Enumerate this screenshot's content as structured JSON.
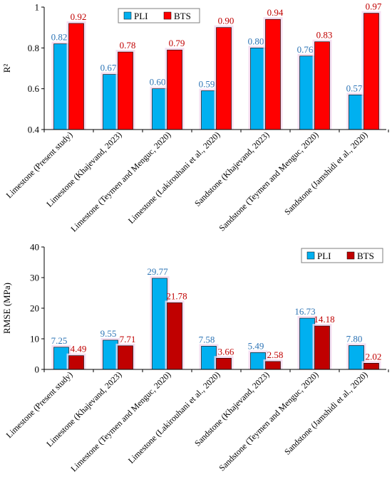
{
  "colors": {
    "pli": "#00b0f0",
    "bts": "#ff0000",
    "bts_dark": "#c00000",
    "pli_label": "#2e75b6",
    "bts_label": "#c00000",
    "shadow": "#f2d7ef",
    "axis": "#000000",
    "legend_border": "#7f7f7f"
  },
  "chart_data": [
    {
      "type": "bar",
      "ylabel": "R²",
      "ylim": [
        0.4,
        1.0
      ],
      "yticks": [
        0.4,
        0.6,
        0.8,
        1.0
      ],
      "ytick_labels": [
        "0.4",
        "0.6",
        "0.8",
        "1"
      ],
      "grid": false,
      "legend_position": "top-center",
      "categories": [
        "Limestone (Present study)",
        "Limestone (Khajevand, 2023)",
        "Limestone (Teymen and Menguc, 2020)",
        "Limestone (Lakirouhani et al., 2020)",
        "Sandstone (Khajevand, 2023)",
        "Sandstone (Teymen and Menguc, 2020)",
        "Sandstone (Jamshidi et al., 2020)"
      ],
      "series": [
        {
          "name": "PLI",
          "color": "#00b0f0",
          "values": [
            0.82,
            0.67,
            0.6,
            0.59,
            0.8,
            0.76,
            0.57
          ],
          "labels": [
            "0.82",
            "0.67",
            "0.60",
            "0.59",
            "0.80",
            "0.76",
            "0.57"
          ]
        },
        {
          "name": "BTS",
          "color": "#ff0000",
          "values": [
            0.92,
            0.78,
            0.79,
            0.9,
            0.94,
            0.83,
            0.97
          ],
          "labels": [
            "0.92",
            "0.78",
            "0.79",
            "0.90",
            "0.94",
            "0.83",
            "0.97"
          ]
        }
      ]
    },
    {
      "type": "bar",
      "ylabel": "RMSE (MPa)",
      "ylim": [
        0,
        40
      ],
      "yticks": [
        0,
        10,
        20,
        30,
        40
      ],
      "ytick_labels": [
        "0",
        "10",
        "20",
        "30",
        "40"
      ],
      "grid": false,
      "legend_position": "top-right",
      "categories": [
        "Limestone (Present study)",
        "Limestone (Khajevand, 2023)",
        "Limestone (Teymen and Menguc, 2020)",
        "Limestone (Lakirouhani et al., 2020)",
        "Sandstone (Khajevand, 2023)",
        "Sandstone (Teymen and Menguc, 2020)",
        "Sandstone (Jamshidi et al., 2020)"
      ],
      "series": [
        {
          "name": "PLI",
          "color": "#00b0f0",
          "values": [
            7.25,
            9.55,
            29.77,
            7.58,
            5.49,
            16.73,
            7.8
          ],
          "labels": [
            "7.25",
            "9.55",
            "29.77",
            "7.58",
            "5.49",
            "16.73",
            "7.80"
          ]
        },
        {
          "name": "BTS",
          "color": "#c00000",
          "values": [
            4.49,
            7.71,
            21.78,
            3.66,
            2.58,
            14.18,
            2.02
          ],
          "labels": [
            "4.49",
            "7.71",
            "21.78",
            "3.66",
            "2.58",
            "14.18",
            "2.02"
          ]
        }
      ]
    }
  ]
}
